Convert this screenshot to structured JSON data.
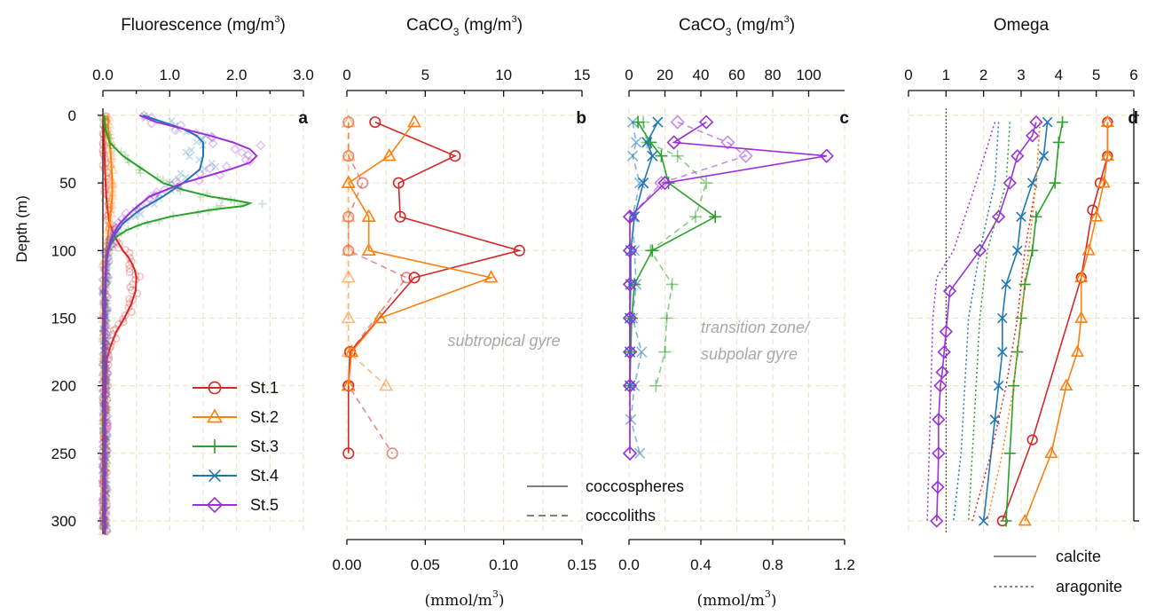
{
  "figure": {
    "ylabel": "Depth (m)",
    "y_ticks": [
      0,
      50,
      100,
      150,
      200,
      250,
      300
    ],
    "ylim": [
      0,
      310
    ],
    "grid": true
  },
  "colors": {
    "St.1": "#d62728",
    "St.2": "#ff7f0e",
    "St.3": "#2ca02c",
    "St.4": "#1f77b4",
    "St.5": "#9b30d9",
    "calcite_sat": "#555555"
  },
  "legends": {
    "stations": [
      {
        "name": "St.1",
        "marker": "circle"
      },
      {
        "name": "St.2",
        "marker": "triangle"
      },
      {
        "name": "St.3",
        "marker": "plus"
      },
      {
        "name": "St.4",
        "marker": "x"
      },
      {
        "name": "St.5",
        "marker": "diamond"
      }
    ],
    "type": [
      {
        "name": "coccospheres",
        "style": "solid"
      },
      {
        "name": "coccoliths",
        "style": "dashed"
      }
    ],
    "omega": [
      {
        "name": "calcite",
        "style": "solid"
      },
      {
        "name": "aragonite",
        "style": "dotted"
      }
    ]
  },
  "chart_data": [
    {
      "panel": "a",
      "type": "line",
      "title_text": "Fluorescence (mg/m",
      "title_sup": "3",
      "title_end": ")",
      "xlim": [
        0,
        3
      ],
      "top_ticks": [
        "0.0",
        "1.0",
        "2.0",
        "3.0"
      ],
      "top_tick_values": [
        0,
        1,
        2,
        3
      ],
      "series": [
        {
          "name": "St.1",
          "depth": [
            0,
            20,
            40,
            60,
            70,
            80,
            90,
            95,
            100,
            105,
            110,
            115,
            120,
            130,
            140,
            150,
            160,
            170,
            180,
            200,
            240,
            300,
            310
          ],
          "values": [
            0.02,
            0.02,
            0.03,
            0.05,
            0.07,
            0.1,
            0.18,
            0.24,
            0.3,
            0.38,
            0.44,
            0.48,
            0.5,
            0.49,
            0.42,
            0.32,
            0.2,
            0.12,
            0.06,
            0.04,
            0.03,
            0.03,
            0.03
          ]
        },
        {
          "name": "St.2",
          "depth": [
            0,
            10,
            20,
            30,
            40,
            50,
            60,
            70,
            80,
            90,
            100,
            110,
            120,
            140,
            160,
            180,
            200,
            250,
            300,
            310
          ],
          "values": [
            0.07,
            0.08,
            0.1,
            0.12,
            0.13,
            0.14,
            0.14,
            0.12,
            0.1,
            0.07,
            0.05,
            0.04,
            0.03,
            0.03,
            0.02,
            0.02,
            0.02,
            0.02,
            0.02,
            0.02
          ]
        },
        {
          "name": "St.3",
          "depth": [
            0,
            10,
            20,
            30,
            40,
            50,
            55,
            60,
            63,
            65,
            67,
            70,
            75,
            80,
            85,
            90,
            95,
            100,
            110,
            130,
            150,
            200,
            250,
            300,
            310
          ],
          "values": [
            0.02,
            0.04,
            0.1,
            0.3,
            0.6,
            0.9,
            1.2,
            1.6,
            2.0,
            2.2,
            2.1,
            1.6,
            1.0,
            0.6,
            0.35,
            0.2,
            0.12,
            0.08,
            0.05,
            0.04,
            0.03,
            0.03,
            0.03,
            0.03,
            0.03
          ]
        },
        {
          "name": "St.4",
          "depth": [
            0,
            5,
            10,
            15,
            20,
            30,
            40,
            50,
            60,
            70,
            80,
            90,
            100,
            110,
            120,
            130,
            150,
            200,
            250,
            300,
            310
          ],
          "values": [
            0.6,
            0.9,
            1.2,
            1.4,
            1.5,
            1.5,
            1.45,
            1.2,
            0.9,
            0.55,
            0.3,
            0.15,
            0.07,
            0.05,
            0.04,
            0.03,
            0.03,
            0.03,
            0.03,
            0.03,
            0.03
          ]
        },
        {
          "name": "St.5",
          "depth": [
            0,
            5,
            10,
            15,
            20,
            25,
            30,
            35,
            40,
            50,
            60,
            70,
            80,
            90,
            100,
            110,
            120,
            130,
            150,
            200,
            250,
            300,
            310
          ],
          "values": [
            0.55,
            0.8,
            1.2,
            1.6,
            1.95,
            2.2,
            2.3,
            2.2,
            1.9,
            1.2,
            0.7,
            0.45,
            0.25,
            0.13,
            0.07,
            0.05,
            0.04,
            0.03,
            0.03,
            0.03,
            0.03,
            0.03,
            0.03
          ]
        }
      ]
    },
    {
      "panel": "b",
      "type": "line",
      "title_text": "CaCO",
      "title_sub": "3",
      "title_mid": " (mg/m",
      "title_sup": "3",
      "title_end": ")",
      "xlim": [
        0,
        15
      ],
      "top_ticks": [
        "0",
        "5",
        "10",
        "15"
      ],
      "top_tick_values": [
        0,
        5,
        10,
        15
      ],
      "bottom_ticks": [
        "0.00",
        "0.05",
        "0.10",
        "0.15"
      ],
      "bottom_label_text": "(mmol/m",
      "bottom_label_sup": "3",
      "bottom_label_end": ")",
      "annotation": "subtropical gyre",
      "series": [
        {
          "name": "St.1",
          "kind": "coccospheres",
          "depth": [
            5,
            30,
            50,
            75,
            100,
            120,
            175,
            200,
            250
          ],
          "values": [
            1.8,
            6.9,
            3.3,
            3.4,
            11.0,
            4.3,
            0.2,
            0.1,
            0.1
          ]
        },
        {
          "name": "St.1",
          "kind": "coccoliths",
          "depth": [
            5,
            30,
            50,
            75,
            100,
            120,
            175,
            200,
            250
          ],
          "values": [
            0.1,
            0.1,
            1.0,
            0.1,
            0.1,
            3.8,
            0.2,
            0.1,
            2.9
          ]
        },
        {
          "name": "St.2",
          "kind": "coccospheres",
          "depth": [
            5,
            30,
            50,
            75,
            100,
            120,
            150,
            175,
            200
          ],
          "values": [
            4.3,
            2.7,
            0.1,
            1.4,
            1.4,
            9.2,
            2.1,
            0.3,
            0.1
          ]
        },
        {
          "name": "St.2",
          "kind": "coccoliths",
          "depth": [
            5,
            30,
            50,
            75,
            100,
            120,
            150,
            175,
            200
          ],
          "values": [
            0.1,
            0.1,
            0.1,
            0.1,
            0.1,
            0.1,
            0.1,
            0.1,
            2.5
          ]
        }
      ]
    },
    {
      "panel": "c",
      "type": "line",
      "title_text": "CaCO",
      "title_sub": "3",
      "title_mid": " (mg/m",
      "title_sup": "3",
      "title_end": ")",
      "xlim": [
        0,
        120
      ],
      "top_ticks": [
        "0",
        "20",
        "40",
        "60",
        "80",
        "100"
      ],
      "top_tick_values": [
        0,
        20,
        40,
        60,
        80,
        100
      ],
      "bottom_ticks": [
        "0.0",
        "0.4",
        "0.8",
        "1.2"
      ],
      "bottom_label_text": "(mmol/m",
      "bottom_label_sup": "3",
      "bottom_label_end": ")",
      "annotation_lines": [
        "transition zone/",
        "subpolar gyre"
      ],
      "series": [
        {
          "name": "St.3",
          "kind": "coccospheres",
          "depth": [
            5,
            20,
            30,
            50,
            75,
            100,
            125,
            150,
            175,
            200
          ],
          "values": [
            5,
            12,
            18,
            22,
            48,
            13,
            3,
            1.5,
            1,
            0.5
          ]
        },
        {
          "name": "St.3",
          "kind": "coccoliths",
          "depth": [
            5,
            20,
            30,
            50,
            75,
            100,
            125,
            150,
            175,
            200
          ],
          "values": [
            8,
            10,
            27,
            43,
            37,
            12,
            24,
            21,
            20,
            15
          ]
        },
        {
          "name": "St.4",
          "kind": "coccospheres",
          "depth": [
            5,
            20,
            30,
            50,
            75,
            100,
            125,
            150,
            175,
            200
          ],
          "values": [
            16,
            10,
            13,
            8,
            3,
            1,
            1,
            0.5,
            0.5,
            0.5
          ]
        },
        {
          "name": "St.4",
          "kind": "coccoliths",
          "depth": [
            5,
            20,
            30,
            50,
            75,
            100,
            125,
            150,
            175,
            200,
            225,
            250
          ],
          "values": [
            2,
            4,
            2,
            6,
            2,
            3,
            4,
            2,
            7,
            3,
            1,
            6
          ]
        },
        {
          "name": "St.5",
          "kind": "coccospheres",
          "depth": [
            5,
            20,
            30,
            50,
            75,
            100,
            125,
            150,
            175,
            200,
            250
          ],
          "values": [
            43,
            25,
            110,
            20,
            0.5,
            0.5,
            0.5,
            0.5,
            0.5,
            0.5,
            0.5
          ]
        },
        {
          "name": "St.5",
          "kind": "coccoliths",
          "depth": [
            5,
            20,
            30,
            50,
            75,
            100,
            125,
            150,
            175,
            200,
            250
          ],
          "values": [
            27,
            55,
            65,
            18,
            0.5,
            0.5,
            0.5,
            0.5,
            0.5,
            0.5,
            0.5
          ]
        }
      ]
    },
    {
      "panel": "d",
      "type": "line",
      "title_text": "Omega",
      "xlim": [
        0,
        6
      ],
      "top_ticks": [
        "0",
        "1",
        "2",
        "3",
        "4",
        "5",
        "6"
      ],
      "top_tick_values": [
        0,
        1,
        2,
        3,
        4,
        5,
        6
      ],
      "reference_line": 1,
      "series": [
        {
          "name": "St.1",
          "mineral": "calcite",
          "depth": [
            5,
            30,
            50,
            70,
            120,
            240,
            300
          ],
          "values": [
            5.3,
            5.3,
            5.1,
            4.9,
            4.6,
            3.3,
            2.5
          ]
        },
        {
          "name": "St.2",
          "mineral": "calcite",
          "depth": [
            5,
            30,
            50,
            75,
            100,
            120,
            150,
            175,
            200,
            250,
            300
          ],
          "values": [
            5.3,
            5.3,
            5.2,
            5.0,
            4.8,
            4.6,
            4.6,
            4.5,
            4.2,
            3.8,
            3.1
          ]
        },
        {
          "name": "St.3",
          "mineral": "calcite",
          "depth": [
            5,
            20,
            50,
            75,
            100,
            125,
            150,
            175,
            200,
            250,
            300
          ],
          "values": [
            4.1,
            4.0,
            3.9,
            3.4,
            3.3,
            3.1,
            3.0,
            2.9,
            2.8,
            2.7,
            2.6
          ]
        },
        {
          "name": "St.4",
          "mineral": "calcite",
          "depth": [
            5,
            30,
            50,
            75,
            100,
            125,
            150,
            175,
            200,
            225,
            300
          ],
          "values": [
            3.7,
            3.6,
            3.3,
            3.0,
            2.9,
            2.6,
            2.5,
            2.5,
            2.4,
            2.3,
            2.0
          ]
        },
        {
          "name": "St.5",
          "mineral": "calcite",
          "depth": [
            5,
            15,
            30,
            50,
            75,
            100,
            130,
            160,
            175,
            190,
            200,
            225,
            250,
            275,
            300
          ],
          "values": [
            3.4,
            3.3,
            2.9,
            2.7,
            2.4,
            1.9,
            1.1,
            1.0,
            0.95,
            0.9,
            0.85,
            0.8,
            0.8,
            0.78,
            0.75
          ]
        },
        {
          "name": "St.1",
          "mineral": "aragonite",
          "depth": [
            5,
            50,
            100,
            150,
            200,
            250,
            300
          ],
          "values": [
            3.5,
            3.4,
            3.1,
            2.9,
            2.6,
            2.2,
            1.7
          ]
        },
        {
          "name": "St.2",
          "mineral": "aragonite",
          "depth": [
            5,
            50,
            100,
            150,
            200,
            250,
            300
          ],
          "values": [
            3.5,
            3.4,
            3.2,
            3.0,
            2.8,
            2.5,
            2.1
          ]
        },
        {
          "name": "St.3",
          "mineral": "aragonite",
          "depth": [
            5,
            50,
            100,
            150,
            200,
            250,
            300
          ],
          "values": [
            2.7,
            2.6,
            2.1,
            1.9,
            1.8,
            1.7,
            1.6
          ]
        },
        {
          "name": "St.4",
          "mineral": "aragonite",
          "depth": [
            5,
            50,
            100,
            150,
            200,
            250,
            300
          ],
          "values": [
            2.4,
            2.3,
            1.9,
            1.6,
            1.5,
            1.4,
            1.2
          ]
        },
        {
          "name": "St.5",
          "mineral": "aragonite",
          "depth": [
            5,
            50,
            100,
            120,
            150,
            200,
            250,
            300
          ],
          "values": [
            2.3,
            1.8,
            1.2,
            0.75,
            0.65,
            0.6,
            0.55,
            0.5
          ]
        }
      ]
    }
  ]
}
